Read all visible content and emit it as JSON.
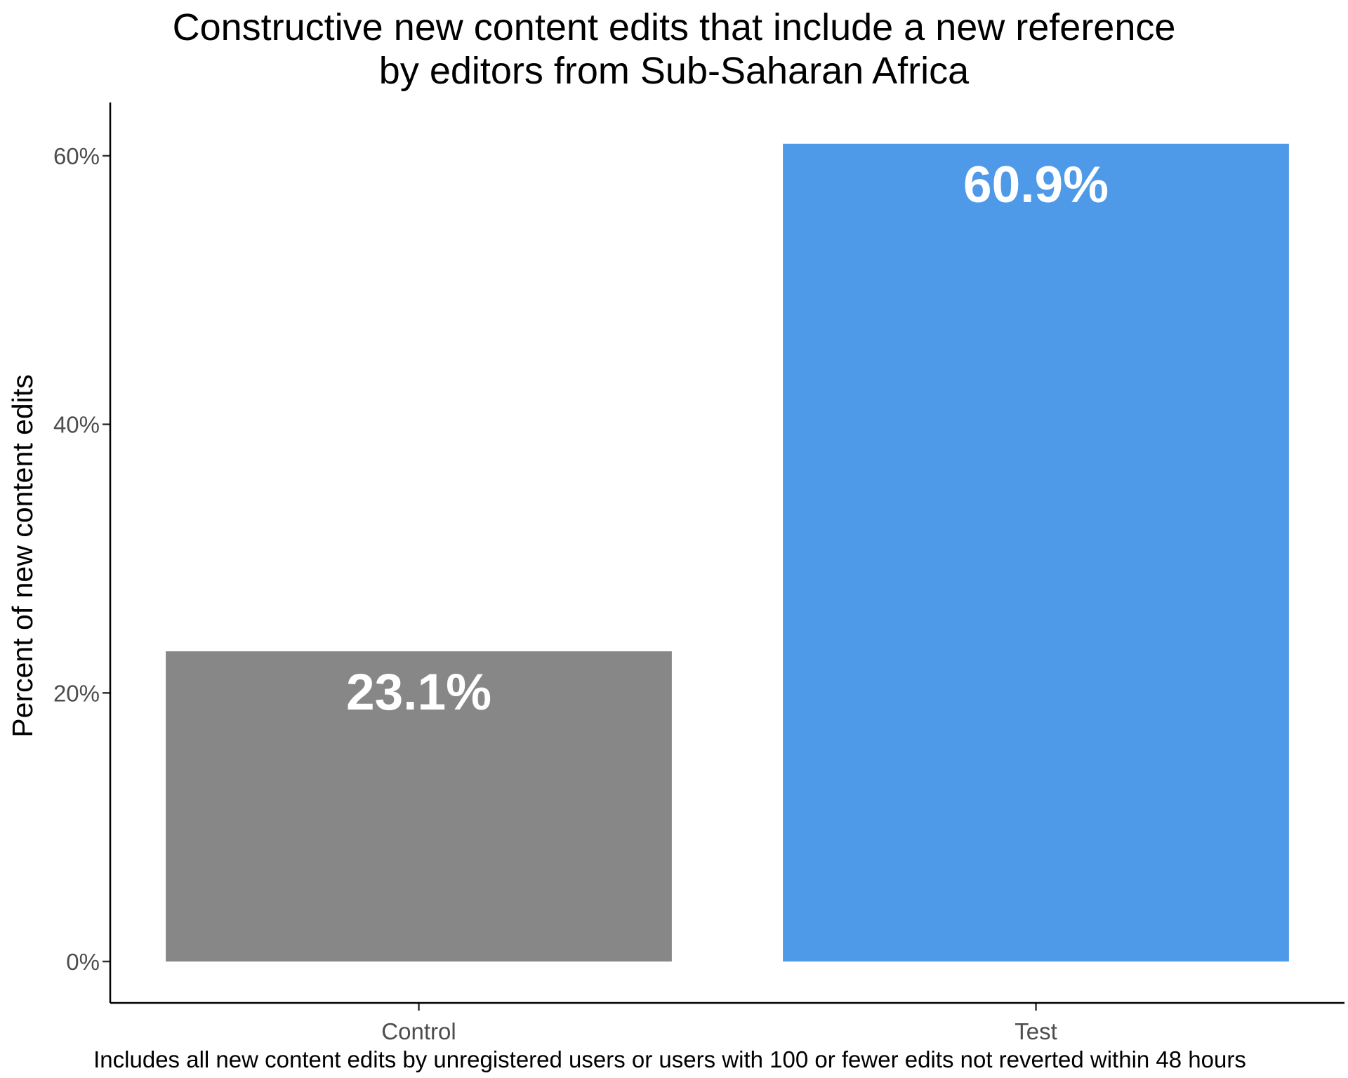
{
  "chart_data": {
    "type": "bar",
    "title_lines": [
      "Constructive new content edits that include a new reference",
      "by editors from Sub-Saharan Africa"
    ],
    "categories": [
      "Control",
      "Test"
    ],
    "values": [
      23.1,
      60.9
    ],
    "data_labels": [
      "23.1%",
      "60.9%"
    ],
    "colors": [
      "#878787",
      "#4E9AE8"
    ],
    "xlabel": "",
    "ylabel": "Percent of new content edits",
    "ylim": [
      0,
      64
    ],
    "yticks": [
      0,
      20,
      40,
      60
    ],
    "ytick_labels": [
      "0%",
      "20%",
      "40%",
      "60%"
    ],
    "caption": "Includes all new content edits by unregistered users or users with 100 or fewer edits not reverted within 48 hours",
    "grid": false,
    "legend": "none"
  }
}
